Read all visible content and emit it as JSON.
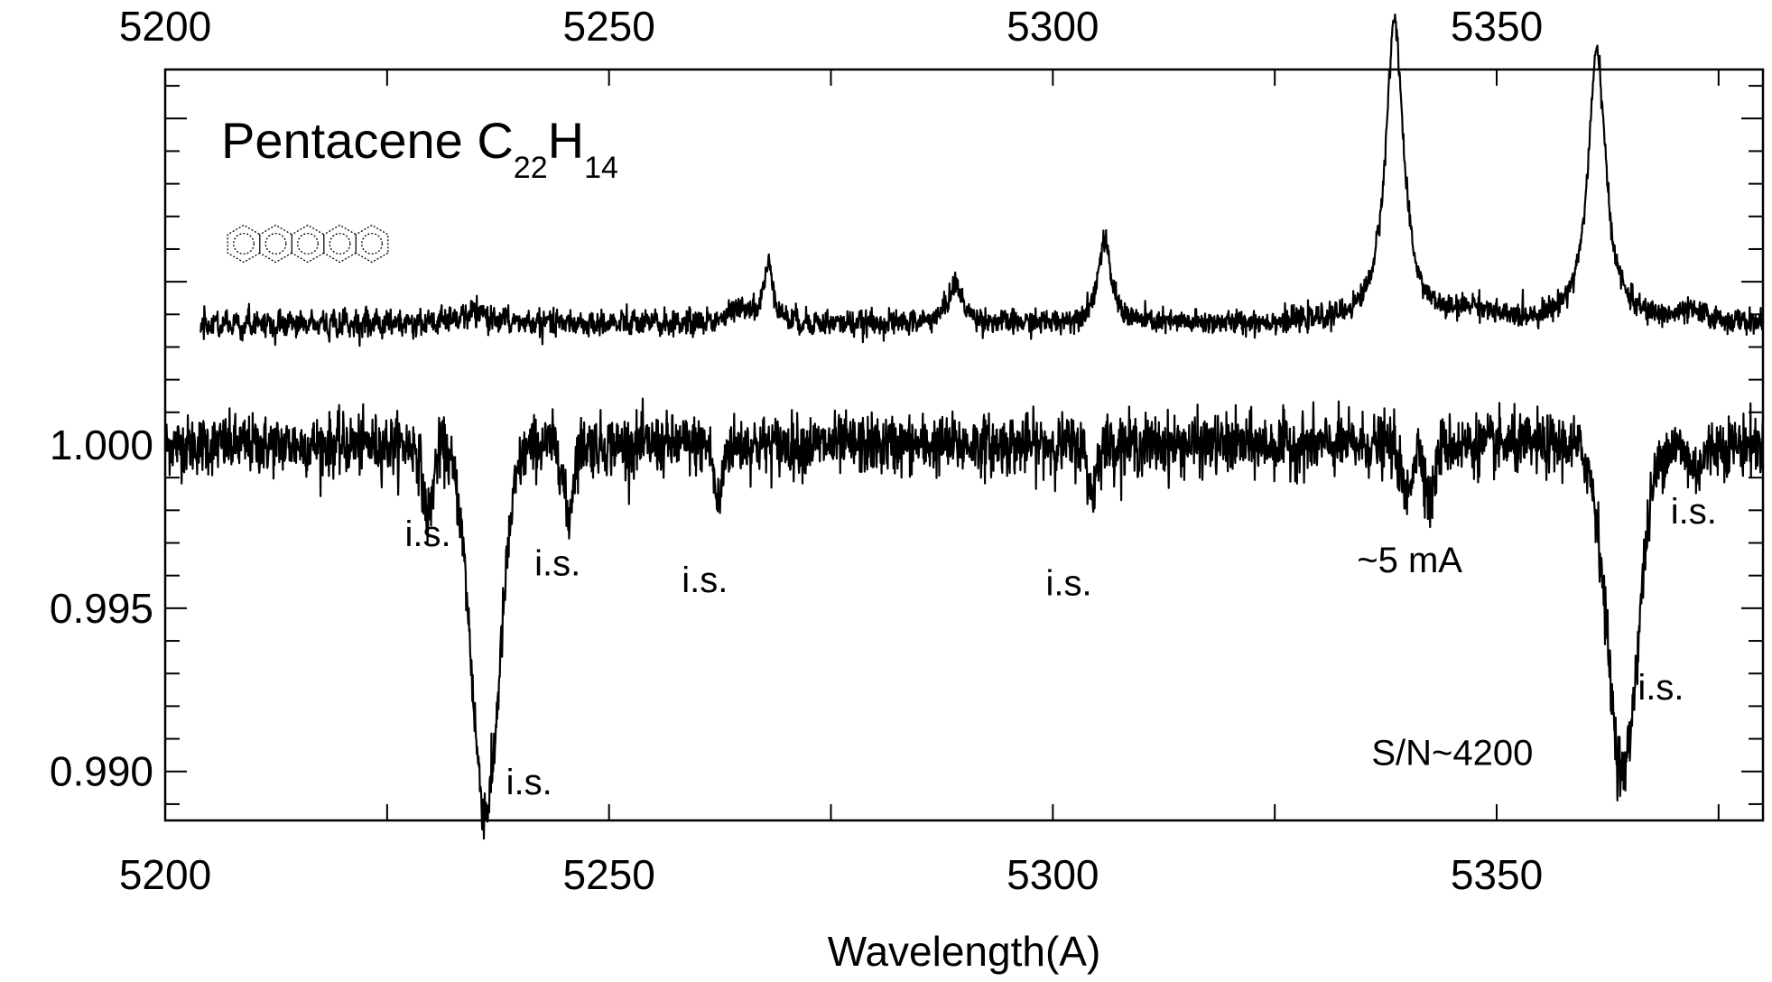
{
  "chart_data": {
    "type": "line",
    "title": "Pentacene C22H14",
    "title_parts": {
      "base": "Pentacene C",
      "sub1": "22",
      "mid": "H",
      "sub2": "14"
    },
    "xlabel": "Wavelength(A)",
    "ylabel": "",
    "xlim": [
      5200,
      5380
    ],
    "ylim": [
      0.9885,
      1.0115
    ],
    "x_ticks": [
      5200,
      5250,
      5300,
      5350
    ],
    "x_tick_labels": [
      "5200",
      "5250",
      "5300",
      "5350"
    ],
    "y_ticks": [
      1.0,
      0.995,
      0.99
    ],
    "y_tick_labels": [
      "1.000",
      "0.995",
      "0.990"
    ],
    "top_axis_labels": [
      "5200",
      "5250",
      "5300",
      "5350"
    ],
    "grid": false,
    "legend": "none",
    "series": [
      {
        "kind": "observed-spectrum",
        "continuum": 1.0,
        "noise": 0.00045,
        "features": [
          {
            "x": 5229.6,
            "depth": 0.0022,
            "width": 0.55
          },
          {
            "x": 5236.1,
            "depth": 0.0112,
            "width": 1.6
          },
          {
            "x": 5245.4,
            "depth": 0.0022,
            "width": 0.5
          },
          {
            "x": 5262.3,
            "depth": 0.0018,
            "width": 0.45
          },
          {
            "x": 5304.4,
            "depth": 0.0015,
            "width": 0.45
          },
          {
            "x": 5339.8,
            "depth": 0.0016,
            "width": 0.55
          },
          {
            "x": 5342.5,
            "depth": 0.0018,
            "width": 0.5
          },
          {
            "x": 5364.2,
            "depth": 0.01,
            "width": 1.7
          },
          {
            "x": 5372.4,
            "depth": 0.0007,
            "width": 0.9
          }
        ]
      },
      {
        "kind": "pentacene-model-spectrum",
        "baseline": 1.0037,
        "noise": 0.00018,
        "peaks": [
          {
            "x": 5235.0,
            "height": 0.0003,
            "width": 2.5
          },
          {
            "x": 5265.0,
            "height": 0.0005,
            "width": 1.5
          },
          {
            "x": 5268.0,
            "height": 0.0018,
            "width": 0.6
          },
          {
            "x": 5289.0,
            "height": 0.0012,
            "width": 1.0
          },
          {
            "x": 5305.8,
            "height": 0.0025,
            "width": 0.9
          },
          {
            "x": 5338.5,
            "height": 0.0093,
            "width": 1.2
          },
          {
            "x": 5347.5,
            "height": 0.0004,
            "width": 2.0
          },
          {
            "x": 5361.3,
            "height": 0.0083,
            "width": 1.2
          },
          {
            "x": 5372.0,
            "height": 0.0003,
            "width": 2.0
          }
        ]
      }
    ],
    "annotations": [
      {
        "text": "i.s.",
        "x": 5229.6,
        "y": 0.9969
      },
      {
        "text": "i.s.",
        "x": 5244.2,
        "y": 0.996
      },
      {
        "text": "i.s.",
        "x": 5260.8,
        "y": 0.9955
      },
      {
        "text": "i.s.",
        "x": 5241.0,
        "y": 0.9893
      },
      {
        "text": "i.s.",
        "x": 5301.8,
        "y": 0.9954
      },
      {
        "text": "~5 mA",
        "x": 5340.2,
        "y": 0.9961
      },
      {
        "text": "i.s.",
        "x": 5372.2,
        "y": 0.9976
      },
      {
        "text": "i.s.",
        "x": 5368.5,
        "y": 0.9922
      },
      {
        "text": "S/N~4200",
        "x": 5345.0,
        "y": 0.9902
      }
    ]
  }
}
